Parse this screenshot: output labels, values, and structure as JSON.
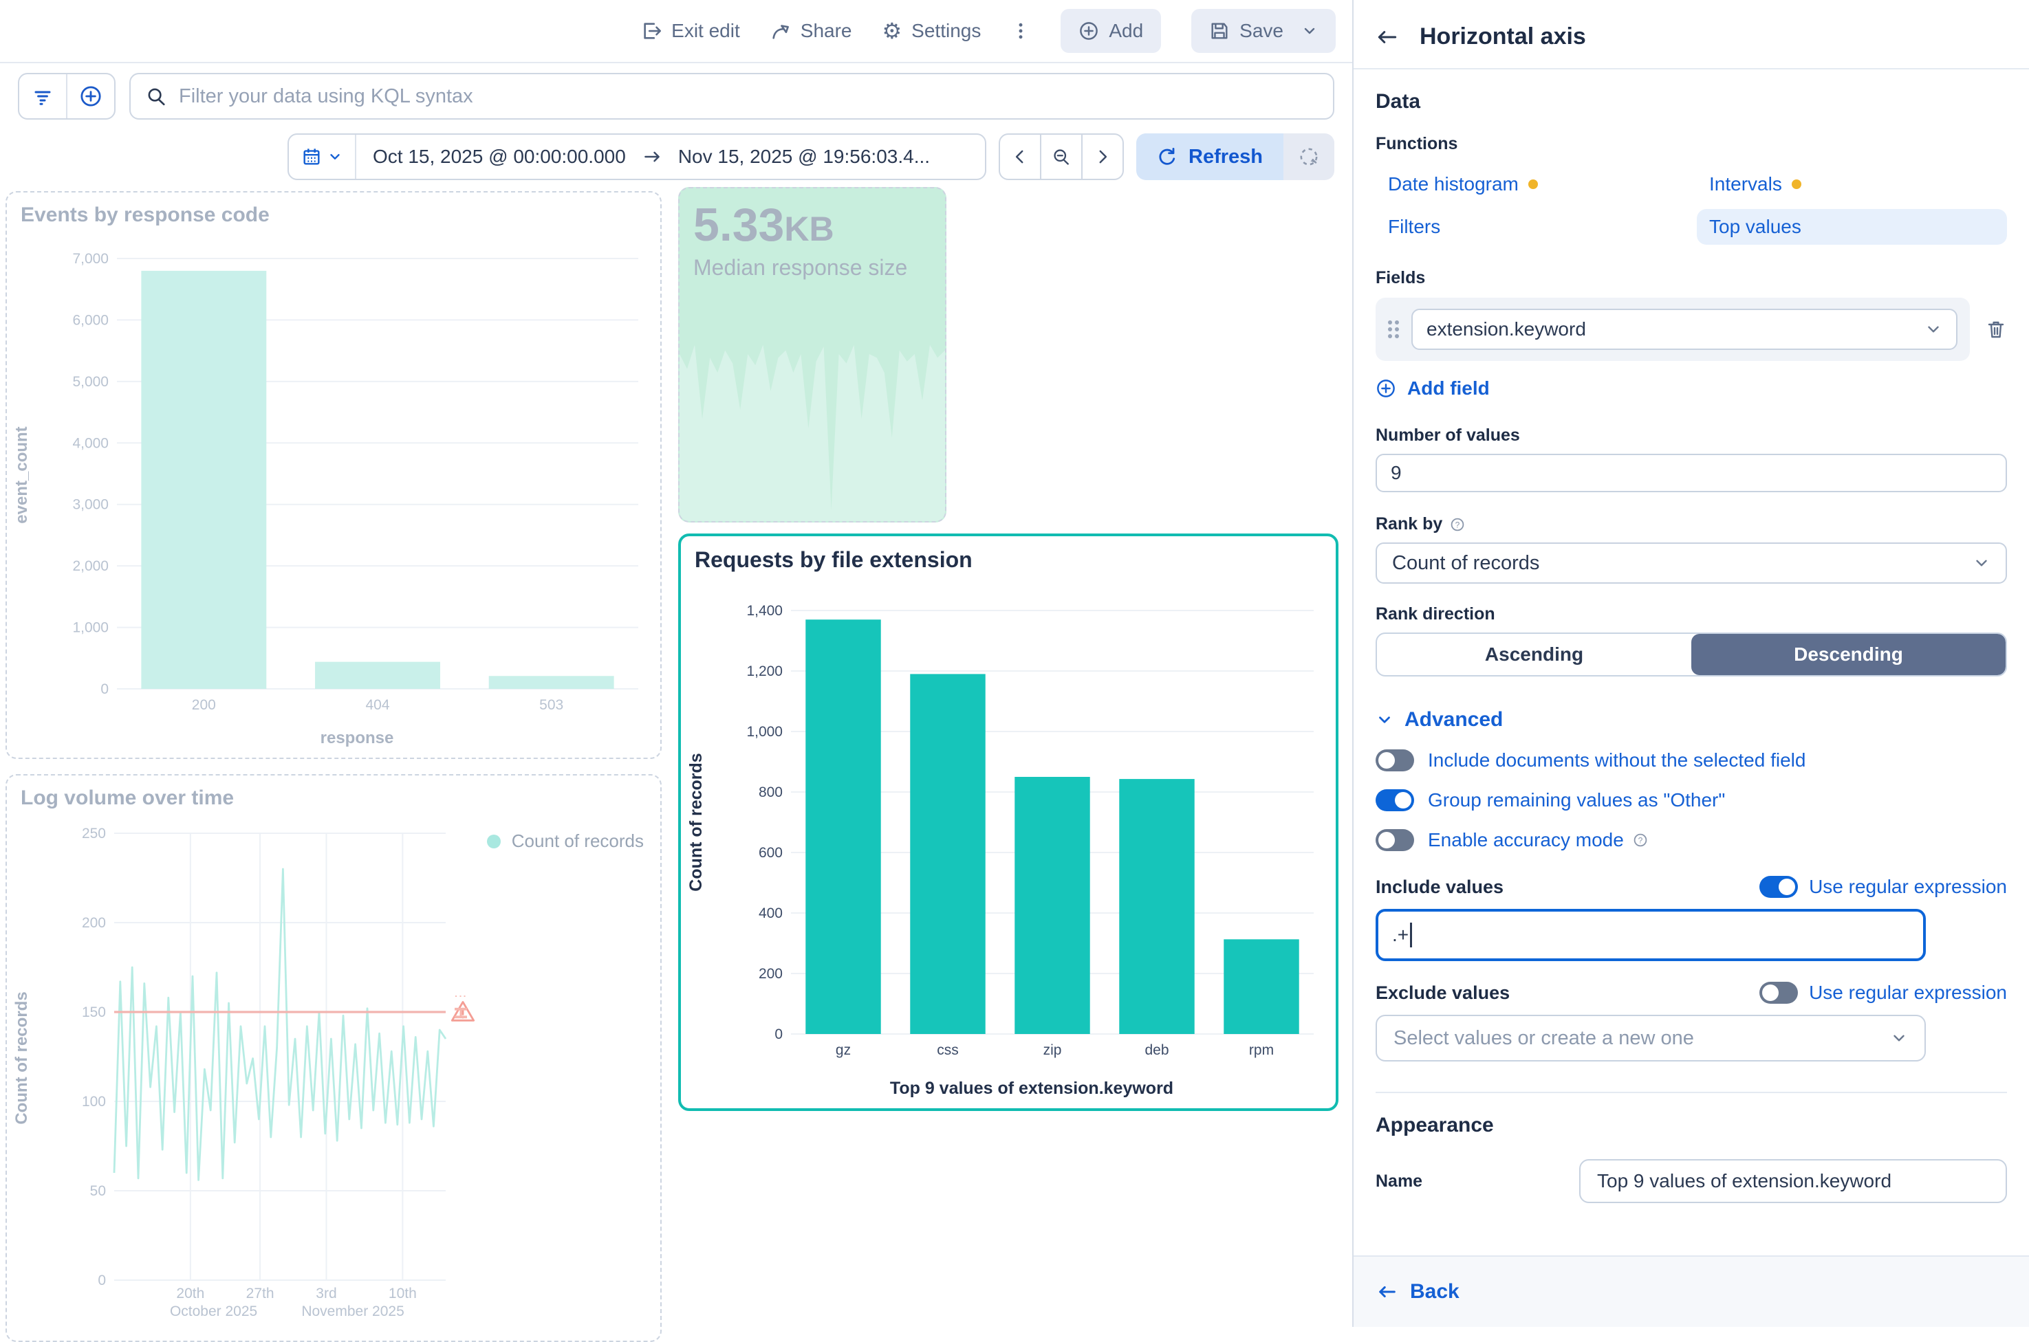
{
  "toolbar": {
    "exit_edit": "Exit edit",
    "share": "Share",
    "settings": "Settings",
    "add": "Add",
    "save": "Save"
  },
  "filter_bar": {
    "placeholder": "Filter your data using KQL syntax"
  },
  "time_picker": {
    "start": "Oct 15, 2025 @ 00:00:00.000",
    "end": "Nov 15, 2025 @ 19:56:03.4...",
    "refresh_label": "Refresh"
  },
  "flyout": {
    "title": "Horizontal axis",
    "data_heading": "Data",
    "functions_label": "Functions",
    "functions": [
      {
        "label": "Date histogram",
        "dot": true,
        "selected": false
      },
      {
        "label": "Intervals",
        "dot": true,
        "selected": false
      },
      {
        "label": "Filters",
        "dot": false,
        "selected": false
      },
      {
        "label": "Top values",
        "dot": false,
        "selected": true
      }
    ],
    "fields_label": "Fields",
    "field_value": "extension.keyword",
    "add_field": "Add field",
    "number_of_values_label": "Number of values",
    "number_of_values": "9",
    "rank_by_label": "Rank by",
    "rank_by_value": "Count of records",
    "rank_direction_label": "Rank direction",
    "rank_direction_options": [
      "Ascending",
      "Descending"
    ],
    "rank_direction_selected": "Descending",
    "advanced_label": "Advanced",
    "toggles": [
      {
        "label": "Include documents without the selected field",
        "on": false,
        "help": false
      },
      {
        "label": "Group remaining values as \"Other\"",
        "on": true,
        "help": false
      },
      {
        "label": "Enable accuracy mode",
        "on": false,
        "help": true
      }
    ],
    "include_values_label": "Include values",
    "include_regex_label": "Use regular expression",
    "include_regex_on": true,
    "include_value": ".+",
    "exclude_values_label": "Exclude values",
    "exclude_regex_label": "Use regular expression",
    "exclude_regex_on": false,
    "exclude_placeholder": "Select values or create a new one",
    "appearance_heading": "Appearance",
    "name_label": "Name",
    "name_value": "Top 9 values of extension.keyword",
    "back_label": "Back"
  },
  "chart_data": [
    {
      "type": "bar",
      "title": "Events by response code",
      "categories": [
        "200",
        "404",
        "503"
      ],
      "values": [
        6800,
        440,
        210
      ],
      "xlabel": "response",
      "ylabel": "event_count",
      "ylim": [
        0,
        7000
      ],
      "ytick_step": 1000,
      "grid": true,
      "legend_position": "none",
      "style": "faded"
    },
    {
      "type": "metric",
      "title": "Median response size",
      "value": "5.33",
      "unit": "KB",
      "sparkline": [
        0.9,
        0.82,
        0.95,
        0.55,
        0.88,
        0.8,
        0.92,
        0.85,
        0.6,
        0.9,
        0.84,
        0.95,
        0.7,
        0.88,
        0.92,
        0.8,
        0.9,
        0.5,
        0.86,
        0.94,
        0.06,
        0.9,
        0.85,
        0.95,
        0.55,
        0.9,
        0.88,
        0.8,
        0.45,
        0.92,
        0.86,
        0.9,
        0.65,
        0.95,
        0.88,
        0.92
      ]
    },
    {
      "type": "bar",
      "title": "Requests by file extension",
      "categories": [
        "gz",
        "css",
        "zip",
        "deb",
        "rpm"
      ],
      "values": [
        1370,
        1190,
        850,
        843,
        313
      ],
      "xlabel": "Top 9 values of extension.keyword",
      "ylabel": "Count of records",
      "ylim": [
        0,
        1400
      ],
      "ytick_step": 200,
      "grid": true,
      "legend_position": "none",
      "style": "active"
    },
    {
      "type": "line",
      "title": "Log volume over time",
      "ylabel": "Count of records",
      "ylim": [
        0,
        250
      ],
      "ytick_step": 50,
      "ref_line": 150,
      "legend": [
        "Count of records"
      ],
      "legend_position": "right",
      "xticks": [
        {
          "label": "20th",
          "pos": 0.23
        },
        {
          "label": "27th",
          "pos": 0.44
        },
        {
          "label": "3rd",
          "pos": 0.64
        },
        {
          "label": "10th",
          "pos": 0.87
        }
      ],
      "month_labels": [
        {
          "label": "October 2025",
          "pos": 0.3
        },
        {
          "label": "November 2025",
          "pos": 0.72
        }
      ],
      "values": [
        60,
        167,
        75,
        175,
        57,
        166,
        108,
        142,
        73,
        158,
        94,
        150,
        60,
        170,
        56,
        118,
        95,
        172,
        57,
        155,
        77,
        142,
        110,
        124,
        90,
        142,
        80,
        130,
        230,
        98,
        135,
        80,
        142,
        95,
        150,
        82,
        135,
        78,
        148,
        90,
        132,
        85,
        152,
        95,
        138,
        88,
        128,
        87,
        142,
        88,
        136,
        90,
        128,
        86,
        140,
        135
      ]
    }
  ],
  "colors": {
    "accent_teal": "#16c5ba",
    "faded_teal_bar": "#c9f0ea",
    "line_teal": "#b7ece4",
    "mint_bg": "#c8eedd",
    "mint_spark": "#d8f3e9",
    "link_blue": "#1560d4",
    "toggle_off": "#69778e",
    "selected_seg_bg": "#5e6e8e",
    "warning_yellow": "#f0b429",
    "ref_line_pink": "#f2b4af",
    "grid": "#edf1f6",
    "tick_faded": "#b9c3d1",
    "tick_dark": "#3d4c68",
    "panel_border_selected": "#11bcb1"
  }
}
